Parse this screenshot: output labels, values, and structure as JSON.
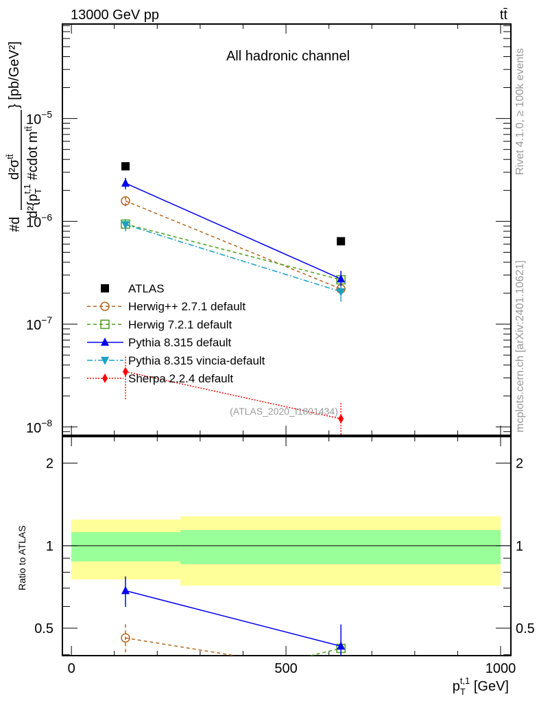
{
  "chart_data": {
    "type": "line",
    "header_left": "13000 GeV pp",
    "header_right": "tt̄",
    "title": "All hadronic channel",
    "analysis_tag": "(ATLAS_2020_I1801434)",
    "side_text_top": "Rivet 4.1.0, ≥ 100k events",
    "side_text_bottom": "mcplots.cern.ch [arXiv:2401.10621]",
    "ylabel": {
      "prefix": "#d",
      "numerator": "d²σ",
      "numerator_sup": "tt̄",
      "denominator": "d²{p",
      "denominator_sub": "T",
      "denominator_sup": "t,1",
      "denominator_rest": " #cdot m",
      "denominator_rest_sup": "tt̄",
      "suffix": "} [pb/GeV²]"
    },
    "xlabel": {
      "main": "p",
      "sub": "T",
      "sup": "t,1",
      "unit": " [GeV]"
    },
    "ratio_ylabel": "Ratio to ATLAS",
    "xlim": [
      -21,
      1024
    ],
    "ylim": [
      8.3e-09,
      8.3e-05
    ],
    "yscale": "log",
    "ratio_ylim": [
      0.397,
      2.5
    ],
    "ratio_yscale": "log",
    "x_ticks": [
      0,
      500,
      1000
    ],
    "x_tick_labels": [
      "0",
      "500",
      "1000"
    ],
    "y_ticks": [
      1e-08,
      1e-07,
      1e-06,
      1e-05
    ],
    "y_tick_labels": [
      {
        "base": "10",
        "exp": "−8"
      },
      {
        "base": "10",
        "exp": "−7"
      },
      {
        "base": "10",
        "exp": "−6"
      },
      {
        "base": "10",
        "exp": "−5"
      }
    ],
    "ratio_y_ticks": [
      0.5,
      1,
      2
    ],
    "ratio_y_tick_labels": [
      "0.5",
      "1",
      "2"
    ],
    "x": [
      126,
      628
    ],
    "bins": [
      [
        0,
        254
      ],
      [
        254,
        1000
      ]
    ],
    "ratio_band": {
      "outer": [
        [
          0.753,
          1.245
        ],
        [
          0.715,
          1.28
        ]
      ],
      "inner": [
        [
          0.876,
          1.12
        ],
        [
          0.856,
          1.14
        ]
      ],
      "outer_color": "#ffff99",
      "inner_color": "#99ff99"
    },
    "legend_position": "bottom-left",
    "series": [
      {
        "name": "ATLAS",
        "color": "#000000",
        "marker": "square-filled",
        "line": "none",
        "values": [
          3.43e-06,
          6.4e-07
        ],
        "err_lo": [
          3.43e-06,
          6.4e-07
        ],
        "err_hi": [
          3.43e-06,
          6.4e-07
        ]
      },
      {
        "name": "Herwig++ 2.7.1 default",
        "color": "#b5651d",
        "marker": "circle-open",
        "line": "dashed",
        "values": [
          1.58e-06,
          2.2e-07
        ],
        "err_lo": [
          1.4e-06,
          1.9e-07
        ],
        "err_hi": [
          1.8e-06,
          2.6e-07
        ]
      },
      {
        "name": "Herwig 7.2.1 default",
        "color": "#4a9e1a",
        "marker": "square-open",
        "line": "dashed",
        "values": [
          9.4e-07,
          2.7e-07
        ],
        "err_lo": [
          8.3e-07,
          2.4e-07
        ],
        "err_hi": [
          1.05e-06,
          3e-07
        ]
      },
      {
        "name": "Pythia 8.315 default",
        "color": "#0000ee",
        "marker": "triangle-up",
        "line": "solid",
        "values": [
          2.35e-06,
          2.75e-07
        ],
        "err_lo": [
          2.05e-06,
          2.3e-07
        ],
        "err_hi": [
          2.65e-06,
          3.3e-07
        ]
      },
      {
        "name": "Pythia 8.315 vincia-default",
        "color": "#1ba0c8",
        "marker": "triangle-down",
        "line": "dashdot",
        "values": [
          9.3e-07,
          2.07e-07
        ],
        "err_lo": [
          8e-07,
          1.65e-07
        ],
        "err_hi": [
          1.05e-06,
          2.5e-07
        ]
      },
      {
        "name": "Sherpa 2.2.4 default",
        "color": "#ff0000",
        "marker": "diamond",
        "line": "dotted",
        "values": [
          3.45e-08,
          1.2e-08
        ],
        "err_lo": [
          1.86e-08,
          6.6e-09
        ],
        "err_hi": [
          5e-08,
          1.73e-08
        ]
      }
    ]
  }
}
